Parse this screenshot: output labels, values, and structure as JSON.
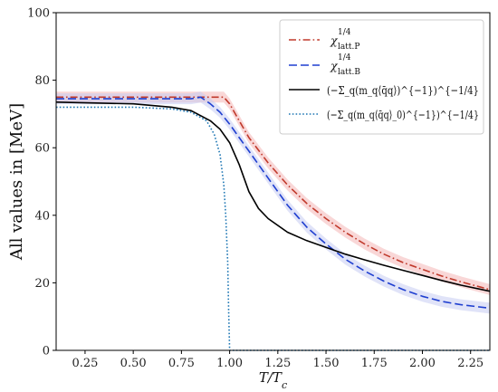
{
  "chart_data": {
    "type": "line",
    "title": "",
    "xlabel": "T/T_c",
    "ylabel": "All values in [MeV]",
    "xlim": [
      0.1,
      2.35
    ],
    "ylim": [
      0,
      100
    ],
    "xticks": [
      "0.25",
      "0.50",
      "0.75",
      "1.00",
      "1.25",
      "1.50",
      "1.75",
      "2.00",
      "2.25"
    ],
    "yticks": [
      "0",
      "20",
      "40",
      "60",
      "80",
      "100"
    ],
    "grid": false,
    "legend": "top-right",
    "series": [
      {
        "name": "χ^{1/4}_{latt.P}",
        "legend_main": "χ",
        "legend_sup": "1/4",
        "legend_sub": "latt.P",
        "color": "#c0392b",
        "band_color": "#f4b6b6",
        "style": "dashdot",
        "band": 1.6,
        "x": [
          0.1,
          0.5,
          0.9,
          0.97,
          1.0,
          1.05,
          1.1,
          1.2,
          1.3,
          1.4,
          1.5,
          1.6,
          1.7,
          1.8,
          1.9,
          2.0,
          2.1,
          2.2,
          2.35
        ],
        "y": [
          75,
          75,
          75,
          75,
          73,
          68,
          63,
          55.5,
          49,
          43.5,
          39,
          35,
          31.5,
          28.5,
          26,
          24,
          22,
          20.3,
          18
        ]
      },
      {
        "name": "χ^{1/4}_{latt.B}",
        "legend_main": "χ",
        "legend_sup": "1/4",
        "legend_sub": "latt.B",
        "color": "#1f3fd0",
        "band_color": "#c6ccf2",
        "style": "dashed",
        "band": 1.6,
        "x": [
          0.1,
          0.5,
          0.8,
          0.85,
          0.9,
          0.95,
          1.0,
          1.05,
          1.1,
          1.2,
          1.3,
          1.4,
          1.5,
          1.6,
          1.7,
          1.8,
          1.9,
          2.0,
          2.1,
          2.2,
          2.35
        ],
        "y": [
          74.5,
          74.5,
          74.5,
          75,
          73,
          70.5,
          67,
          63,
          59,
          51,
          43,
          36.5,
          31.5,
          27,
          23.5,
          20.5,
          18,
          16,
          14.5,
          13.5,
          12.5
        ]
      },
      {
        "name": "(−Σ_q(m_q⟨q̄q⟩)^{−1})^{−1/4}",
        "legend_main": "(−Σ_q(m_q⟨q̄q⟩)^{−1})^{−1/4}",
        "legend_sup": "",
        "legend_sub": "",
        "color": "#000000",
        "band_color": "",
        "style": "solid",
        "band": 0,
        "x": [
          0.1,
          0.5,
          0.7,
          0.8,
          0.9,
          0.95,
          1.0,
          1.05,
          1.1,
          1.15,
          1.2,
          1.3,
          1.4,
          1.5,
          1.6,
          1.7,
          1.8,
          1.9,
          2.0,
          2.1,
          2.2,
          2.35
        ],
        "y": [
          73.5,
          73,
          72,
          71,
          68,
          65.5,
          61.5,
          55,
          47,
          42,
          39,
          35,
          32.5,
          30.5,
          28.5,
          26.8,
          25.2,
          23.7,
          22.2,
          20.7,
          19.3,
          17.5
        ]
      },
      {
        "name": "(−Σ_q(m_q⟨q̄q⟩_0)^{−1})^{−1/4}",
        "legend_main": "(−Σ_q(m_q⟨q̄q⟩_0)^{−1})^{−1/4}",
        "legend_sup": "",
        "legend_sub": "",
        "color": "#1f77b4",
        "band_color": "",
        "style": "dotted",
        "band": 0,
        "x": [
          0.1,
          0.5,
          0.7,
          0.8,
          0.88,
          0.92,
          0.95,
          0.97,
          0.98,
          0.99,
          0.995,
          1.0,
          1.05,
          2.35
        ],
        "y": [
          72,
          72,
          71.5,
          70.5,
          68,
          64,
          58,
          49,
          40,
          26,
          12,
          0,
          0,
          0
        ]
      }
    ]
  }
}
